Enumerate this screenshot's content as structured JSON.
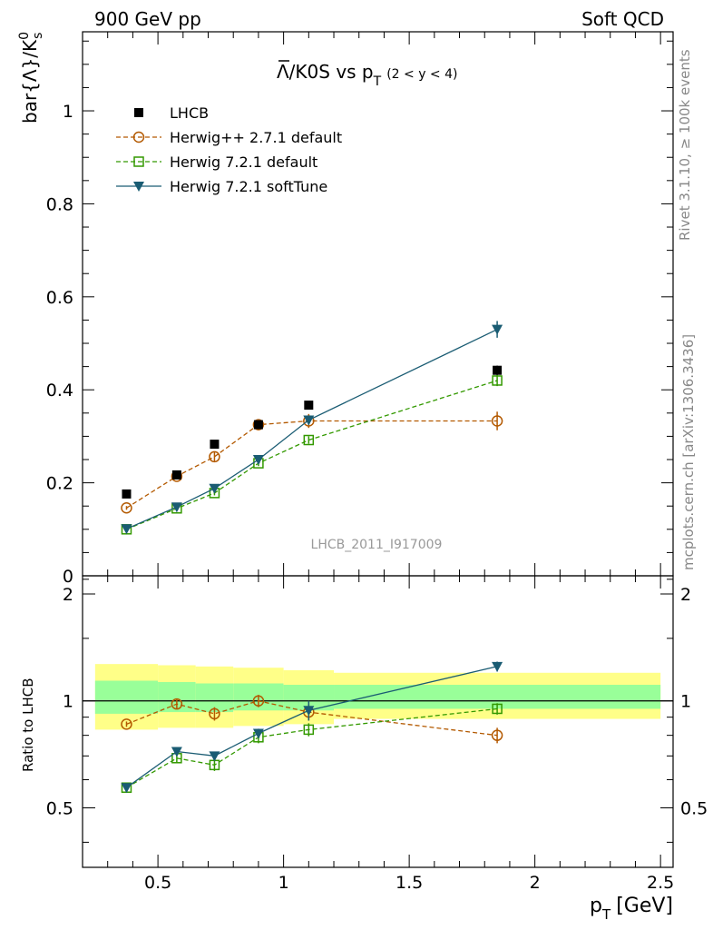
{
  "header": {
    "left": "900 GeV pp",
    "right": "Soft QCD"
  },
  "side_labels": {
    "rivet": "Rivet 3.1.10, ≥ 100k events",
    "mcplots": "mcplots.cern.ch [arXiv:1306.3436]"
  },
  "watermark": "LHCB_2011_I917009",
  "chart_data": [
    {
      "type": "scatter",
      "panel": "main",
      "title": {
        "main": "Λ/K0S vs p",
        "sub": "T",
        "range": "(2 < y < 4)"
      },
      "ylabel": "bar{Λ}/K",
      "ylabel_sup": "0",
      "ylabel_sub": "s",
      "xlim": [
        0.2,
        2.55
      ],
      "ylim": [
        0,
        1.17
      ],
      "yticks": [
        0,
        0.2,
        0.4,
        0.6,
        0.8,
        1
      ],
      "ytick_labels": [
        "0",
        "0.2",
        "0.4",
        "0.6",
        "0.8",
        "1"
      ],
      "legend_position": "top-left",
      "series": [
        {
          "name": "LHCB",
          "style": "data",
          "color": "#000000",
          "x": [
            0.375,
            0.575,
            0.725,
            0.9,
            1.1,
            1.85
          ],
          "y": [
            0.176,
            0.217,
            0.283,
            0.325,
            0.367,
            0.442
          ],
          "err": [
            0.006,
            0.006,
            0.006,
            0.008,
            0.008,
            0.01
          ]
        },
        {
          "name": "Herwig++ 2.7.1 default",
          "style": "circle-dashed",
          "color": "#b35900",
          "x": [
            0.375,
            0.575,
            0.725,
            0.9,
            1.1,
            1.85
          ],
          "y": [
            0.146,
            0.214,
            0.256,
            0.325,
            0.333,
            0.333
          ],
          "err": [
            0.004,
            0.006,
            0.01,
            0.012,
            0.015,
            0.02
          ]
        },
        {
          "name": "Herwig 7.2.1 default",
          "style": "square-dashed",
          "color": "#339900",
          "x": [
            0.375,
            0.575,
            0.725,
            0.9,
            1.1,
            1.85
          ],
          "y": [
            0.1,
            0.145,
            0.178,
            0.242,
            0.292,
            0.42
          ],
          "err": [
            0.003,
            0.004,
            0.005,
            0.006,
            0.008,
            0.012
          ]
        },
        {
          "name": "Herwig 7.2.1 softTune",
          "style": "triangle-solid",
          "color": "#1a5c73",
          "x": [
            0.375,
            0.575,
            0.725,
            0.9,
            1.1,
            1.85
          ],
          "y": [
            0.101,
            0.148,
            0.188,
            0.25,
            0.335,
            0.53
          ],
          "err": [
            0.003,
            0.004,
            0.005,
            0.007,
            0.01,
            0.018
          ]
        }
      ]
    },
    {
      "type": "scatter",
      "panel": "ratio",
      "ylabel": "Ratio to LHCB",
      "xlabel": "p",
      "xlabel_sub": "T",
      "xlabel_unit": "[GeV]",
      "xlim": [
        0.2,
        2.55
      ],
      "ylim": [
        0.34,
        2.25
      ],
      "log_y": true,
      "xticks": [
        0.5,
        1,
        1.5,
        2,
        2.5
      ],
      "xtick_labels": [
        "0.5",
        "1",
        "1.5",
        "2",
        "2.5"
      ],
      "yticks": [
        0.5,
        1,
        2
      ],
      "ytick_labels": [
        "0.5",
        "1",
        "2"
      ],
      "bands": {
        "edges": [
          0.25,
          0.5,
          0.65,
          0.8,
          1.0,
          1.2,
          2.5
        ],
        "outer": [
          [
            0.83,
            1.27
          ],
          [
            0.84,
            1.26
          ],
          [
            0.84,
            1.25
          ],
          [
            0.85,
            1.24
          ],
          [
            0.86,
            1.22
          ],
          [
            0.89,
            1.2
          ]
        ],
        "inner": [
          [
            0.92,
            1.14
          ],
          [
            0.93,
            1.13
          ],
          [
            0.93,
            1.12
          ],
          [
            0.94,
            1.12
          ],
          [
            0.94,
            1.11
          ],
          [
            0.95,
            1.11
          ]
        ],
        "outer_color": "#ffff88",
        "inner_color": "#99ff99"
      },
      "series": [
        {
          "name": "Herwig++ 2.7.1 default",
          "style": "circle-dashed",
          "color": "#b35900",
          "x": [
            0.375,
            0.575,
            0.725,
            0.9,
            1.1,
            1.85
          ],
          "y": [
            0.86,
            0.98,
            0.92,
            1.0,
            0.93,
            0.8
          ],
          "err": [
            0.015,
            0.03,
            0.04,
            0.04,
            0.05,
            0.04
          ]
        },
        {
          "name": "Herwig 7.2.1 default",
          "style": "square-dashed",
          "color": "#339900",
          "x": [
            0.375,
            0.575,
            0.725,
            0.9,
            1.1,
            1.85
          ],
          "y": [
            0.57,
            0.69,
            0.66,
            0.79,
            0.83,
            0.95
          ],
          "err": [
            0.015,
            0.02,
            0.025,
            0.03,
            0.035,
            0.035
          ]
        },
        {
          "name": "Herwig 7.2.1 softTune",
          "style": "triangle-solid",
          "color": "#1a5c73",
          "x": [
            0.375,
            0.575,
            0.725,
            0.9,
            1.1,
            1.85
          ],
          "y": [
            0.57,
            0.72,
            0.7,
            0.81,
            0.94,
            1.25
          ],
          "err": [
            0.015,
            0.02,
            0.02,
            0.025,
            0.06,
            0.04
          ]
        }
      ]
    }
  ]
}
